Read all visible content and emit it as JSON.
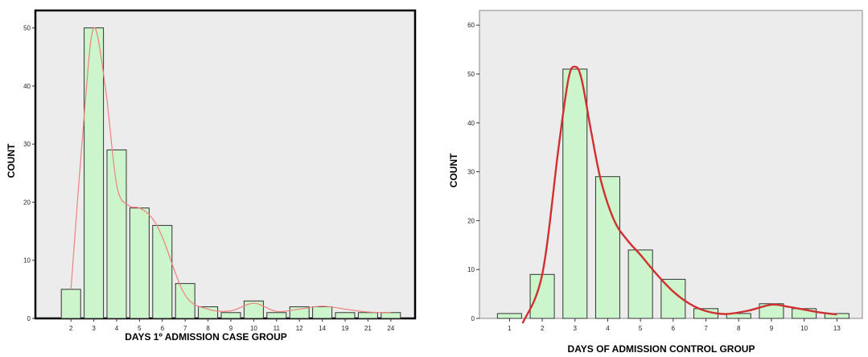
{
  "chart_data": [
    {
      "type": "bar",
      "xlabel": "DAYS 1º ADMISSION CASE GROUP",
      "ylabel": "COUNT",
      "categories": [
        "2",
        "3",
        "4",
        "5",
        "6",
        "7",
        "8",
        "9",
        "10",
        "11",
        "12",
        "14",
        "19",
        "21",
        "24"
      ],
      "values": [
        5,
        50,
        29,
        19,
        16,
        6,
        2,
        1,
        3,
        1,
        2,
        2,
        1,
        1,
        1
      ],
      "yticks": [
        0,
        10,
        20,
        30,
        40,
        50
      ],
      "ylim": [
        0,
        53
      ],
      "curve": [
        [
          0,
          5
        ],
        [
          0.6,
          36
        ],
        [
          1,
          50
        ],
        [
          1.5,
          40
        ],
        [
          2,
          23
        ],
        [
          2.5,
          19.5
        ],
        [
          3,
          19
        ],
        [
          3.5,
          17.5
        ],
        [
          4,
          14
        ],
        [
          5,
          4
        ],
        [
          6,
          1.6
        ],
        [
          7,
          1.3
        ],
        [
          8,
          2.6
        ],
        [
          9,
          1.2
        ],
        [
          10,
          1.6
        ],
        [
          11,
          2.1
        ],
        [
          12,
          1.6
        ],
        [
          13,
          1.1
        ],
        [
          14,
          1
        ]
      ],
      "colors": {
        "bar_fill": "#ccf5cc",
        "bar_stroke": "#333333",
        "curve": "#f08080",
        "plot_bg": "#ececec",
        "frame": "#000000"
      },
      "grid": false
    },
    {
      "type": "bar",
      "xlabel": "DAYS OF ADMISSION CONTROL GROUP",
      "ylabel": "COUNT",
      "categories": [
        "1",
        "2",
        "3",
        "4",
        "5",
        "6",
        "7",
        "8",
        "9",
        "10",
        "13"
      ],
      "values": [
        1,
        9,
        51,
        29,
        14,
        8,
        2,
        1,
        3,
        2,
        1
      ],
      "yticks": [
        0,
        10,
        20,
        30,
        40,
        50,
        60
      ],
      "ylim": [
        0,
        63
      ],
      "curve": [
        [
          0.4,
          -1
        ],
        [
          1,
          9
        ],
        [
          1.5,
          35
        ],
        [
          1.8,
          49
        ],
        [
          2,
          51.5
        ],
        [
          2.2,
          49
        ],
        [
          2.5,
          38
        ],
        [
          2.8,
          28
        ],
        [
          3.2,
          20
        ],
        [
          3.6,
          16
        ],
        [
          4,
          13
        ],
        [
          4.5,
          9
        ],
        [
          5,
          5.5
        ],
        [
          5.5,
          3
        ],
        [
          6,
          1.5
        ],
        [
          6.6,
          0.9
        ],
        [
          7.3,
          1.6
        ],
        [
          8,
          2.8
        ],
        [
          8.5,
          2.4
        ],
        [
          9,
          1.8
        ],
        [
          9.5,
          1.2
        ],
        [
          10,
          0.8
        ]
      ],
      "colors": {
        "bar_fill": "#ccf5cc",
        "bar_stroke": "#333333",
        "curve": "#d03030",
        "plot_bg": "#ececec",
        "frame": "#888888"
      },
      "grid": false
    }
  ]
}
